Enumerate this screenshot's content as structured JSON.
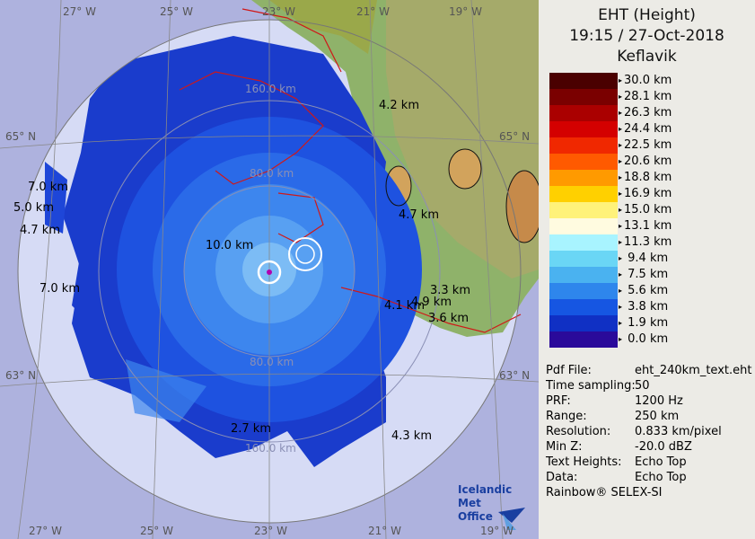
{
  "header": {
    "line1": "EHT (Height)",
    "line2": "19:15 / 27-Oct-2018",
    "line3": "Keflavik"
  },
  "scale": [
    {
      "label": "30.0 km",
      "color": "#4a0000"
    },
    {
      "label": "28.1 km",
      "color": "#7a0000"
    },
    {
      "label": "26.3 km",
      "color": "#aa0000"
    },
    {
      "label": "24.4 km",
      "color": "#d40000"
    },
    {
      "label": "22.5 km",
      "color": "#f02800"
    },
    {
      "label": "20.6 km",
      "color": "#ff5a00"
    },
    {
      "label": "18.8 km",
      "color": "#ff9a00"
    },
    {
      "label": "16.9 km",
      "color": "#ffd000"
    },
    {
      "label": "15.0 km",
      "color": "#fff27a"
    },
    {
      "label": "13.1 km",
      "color": "#fffbe0"
    },
    {
      "label": "11.3 km",
      "color": "#a8f4ff"
    },
    {
      "label": "9.4 km",
      "color": "#6ad6f5"
    },
    {
      "label": "7.5 km",
      "color": "#4ab2f0"
    },
    {
      "label": "5.6 km",
      "color": "#2e86ec"
    },
    {
      "label": "3.8 km",
      "color": "#1656e2"
    },
    {
      "label": "1.9 km",
      "color": "#1030c4"
    },
    {
      "label": "0.0 km",
      "color": "#2a0a9a"
    }
  ],
  "info": [
    {
      "key": "Pdf File:",
      "value": "eht_240km_text.eht"
    },
    {
      "key": "Time sampling:",
      "value": "50"
    },
    {
      "key": "PRF:",
      "value": "1200 Hz"
    },
    {
      "key": "Range:",
      "value": "250 km"
    },
    {
      "key": "Resolution:",
      "value": "0.833 km/pixel"
    },
    {
      "key": "Min Z:",
      "value": "-20.0 dBZ"
    },
    {
      "key": "Text Heights:",
      "value": "Echo Top"
    },
    {
      "key": "Data:",
      "value": "Echo Top"
    }
  ],
  "footer": "Rainbow® SELEX-SI",
  "logo": {
    "line1": "Icelandic Met",
    "line2": "Office"
  },
  "map": {
    "lon_labels_top": [
      "27° W",
      "25° W",
      "23° W",
      "21° W",
      "19° W"
    ],
    "lon_labels_bottom": [
      "27° W",
      "25° W",
      "23° W",
      "21° W",
      "19° W"
    ],
    "lat_labels_left": [
      "65° N",
      "63° N"
    ],
    "lat_labels_right": [
      "65° N",
      "63° N"
    ],
    "range_labels": [
      "160.0 km",
      "80.0 km",
      "80.0 km",
      "160.0 km"
    ],
    "height_labels": [
      "4.2 km",
      "7.0 km",
      "5.0 km",
      "4.7 km",
      "10.0 km",
      "4.7 km",
      "7.0 km",
      "3.3 km",
      "4.9 km",
      "4.1 km",
      "3.6 km",
      "2.7 km",
      "4.3 km"
    ]
  }
}
